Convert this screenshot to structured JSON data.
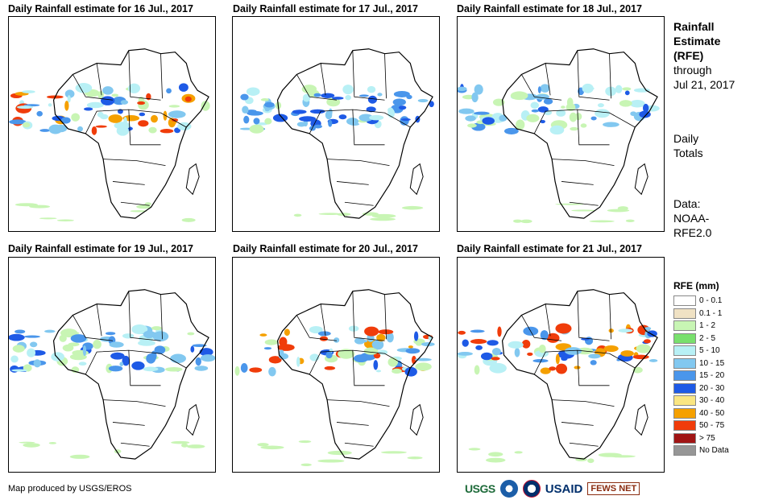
{
  "panels": [
    {
      "title": "Daily Rainfall estimate for 16 Jul., 2017",
      "intensity": "high"
    },
    {
      "title": "Daily Rainfall estimate for 17 Jul., 2017",
      "intensity": "moderate"
    },
    {
      "title": "Daily Rainfall estimate for 18 Jul., 2017",
      "intensity": "moderate"
    },
    {
      "title": "Daily Rainfall estimate for 19 Jul., 2017",
      "intensity": "moderate"
    },
    {
      "title": "Daily Rainfall estimate for 20 Jul., 2017",
      "intensity": "high"
    },
    {
      "title": "Daily Rainfall estimate for 21 Jul., 2017",
      "intensity": "high"
    }
  ],
  "side": {
    "heading_line1": "Rainfall",
    "heading_line2": "Estimate",
    "heading_line3": "(RFE)",
    "through_line1": "through",
    "through_line2": "Jul 21, 2017",
    "totals_line1": "Daily",
    "totals_line2": "Totals",
    "data_line1": "Data:",
    "data_line2": "NOAA-",
    "data_line3": "RFE2.0"
  },
  "legend": {
    "title": "RFE (mm)",
    "items": [
      {
        "label": "0 - 0.1",
        "color": "#ffffff"
      },
      {
        "label": "0.1 - 1",
        "color": "#f0e2c4"
      },
      {
        "label": "1 - 2",
        "color": "#c8f5b4"
      },
      {
        "label": "2 - 5",
        "color": "#79e06d"
      },
      {
        "label": "5 - 10",
        "color": "#b8f0f5"
      },
      {
        "label": "10 - 15",
        "color": "#82c8f0"
      },
      {
        "label": "15 - 20",
        "color": "#4a96eb"
      },
      {
        "label": "20 - 30",
        "color": "#1e5ae6"
      },
      {
        "label": "30 - 40",
        "color": "#fae682"
      },
      {
        "label": "40 - 50",
        "color": "#f5a000"
      },
      {
        "label": "50 - 75",
        "color": "#f03c0a"
      },
      {
        "label": "> 75",
        "color": "#a01414"
      },
      {
        "label": "No Data",
        "color": "#969696"
      }
    ]
  },
  "credit": "Map produced by USGS/EROS",
  "logos": {
    "usgs": "USGS",
    "usaid": "USAID",
    "fews": "FEWS NET"
  }
}
